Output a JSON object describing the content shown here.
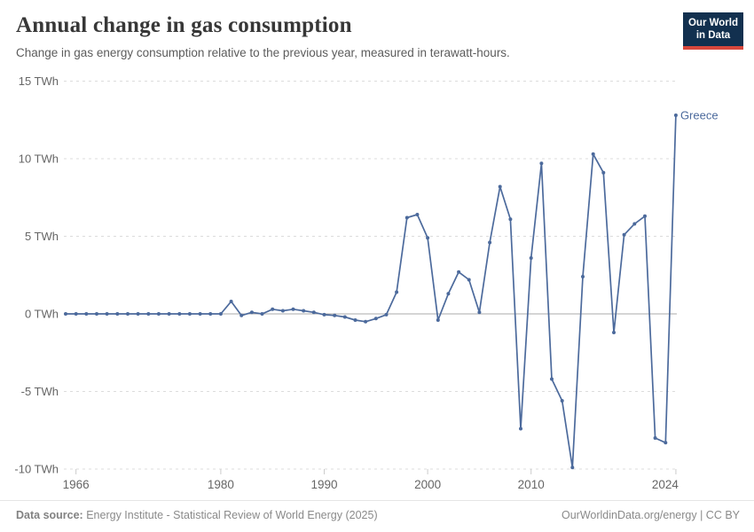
{
  "header": {
    "title": "Annual change in gas consumption",
    "subtitle": "Change in gas energy consumption relative to the previous year, measured in terawatt-hours."
  },
  "logo": {
    "line1": "Our World",
    "line2": "in Data",
    "bg": "#12304f",
    "accent": "#d8473c"
  },
  "chart_data": {
    "type": "line",
    "title": "Annual change in gas consumption",
    "ylabel": "TWh",
    "xlabel": "",
    "grid": "horizontal-dashed",
    "legend_position": "end-of-line-label",
    "xlim": [
      1965,
      2024
    ],
    "ylim": [
      -11.6,
      15.2
    ],
    "x_ticks": [
      {
        "value": 1966,
        "label": "1966"
      },
      {
        "value": 1980,
        "label": "1980"
      },
      {
        "value": 1990,
        "label": "1990"
      },
      {
        "value": 2000,
        "label": "2000"
      },
      {
        "value": 2010,
        "label": "2010"
      },
      {
        "value": 2024,
        "label": "2024"
      }
    ],
    "y_ticks": [
      {
        "value": 15,
        "label": "15 TWh"
      },
      {
        "value": 10,
        "label": "10 TWh"
      },
      {
        "value": 5,
        "label": "5 TWh"
      },
      {
        "value": 0,
        "label": "0 TWh"
      },
      {
        "value": -5,
        "label": "-5 TWh"
      },
      {
        "value": -10,
        "label": "-10 TWh"
      }
    ],
    "x": [
      1965,
      1966,
      1967,
      1968,
      1969,
      1970,
      1971,
      1972,
      1973,
      1974,
      1975,
      1976,
      1977,
      1978,
      1979,
      1980,
      1981,
      1982,
      1983,
      1984,
      1985,
      1986,
      1987,
      1988,
      1989,
      1990,
      1991,
      1992,
      1993,
      1994,
      1995,
      1996,
      1997,
      1998,
      1999,
      2000,
      2001,
      2002,
      2003,
      2004,
      2005,
      2006,
      2007,
      2008,
      2009,
      2010,
      2011,
      2012,
      2013,
      2014,
      2015,
      2016,
      2017,
      2018,
      2019,
      2020,
      2021,
      2022,
      2023,
      2024
    ],
    "series": [
      {
        "name": "Greece",
        "color": "#4c6a9c",
        "values": [
          0,
          0,
          0,
          0,
          0,
          0,
          0,
          0,
          0,
          0,
          0,
          0,
          0,
          0,
          0,
          0,
          0.8,
          -0.1,
          0.1,
          0,
          0.3,
          0.2,
          0.3,
          0.2,
          0.1,
          -0.05,
          -0.1,
          -0.2,
          -0.4,
          -0.5,
          -0.3,
          -0.05,
          1.4,
          6.2,
          6.4,
          4.9,
          -0.4,
          1.3,
          2.7,
          2.2,
          0.1,
          4.6,
          8.2,
          6.1,
          -7.4,
          3.6,
          9.7,
          -4.2,
          -5.6,
          -9.9,
          2.4,
          10.3,
          9.1,
          -1.2,
          5.1,
          5.8,
          6.3,
          -8.0,
          -8.3,
          12.8
        ]
      }
    ],
    "colors": {
      "line": "#4c6a9c",
      "gridline": "#dcdcdc",
      "zero_line": "#ababab",
      "tick_text": "#666666"
    }
  },
  "footer": {
    "datasource_label": "Data source:",
    "datasource_text": "Energy Institute - Statistical Review of World Energy (2025)",
    "credit": "OurWorldinData.org/energy | CC BY"
  }
}
